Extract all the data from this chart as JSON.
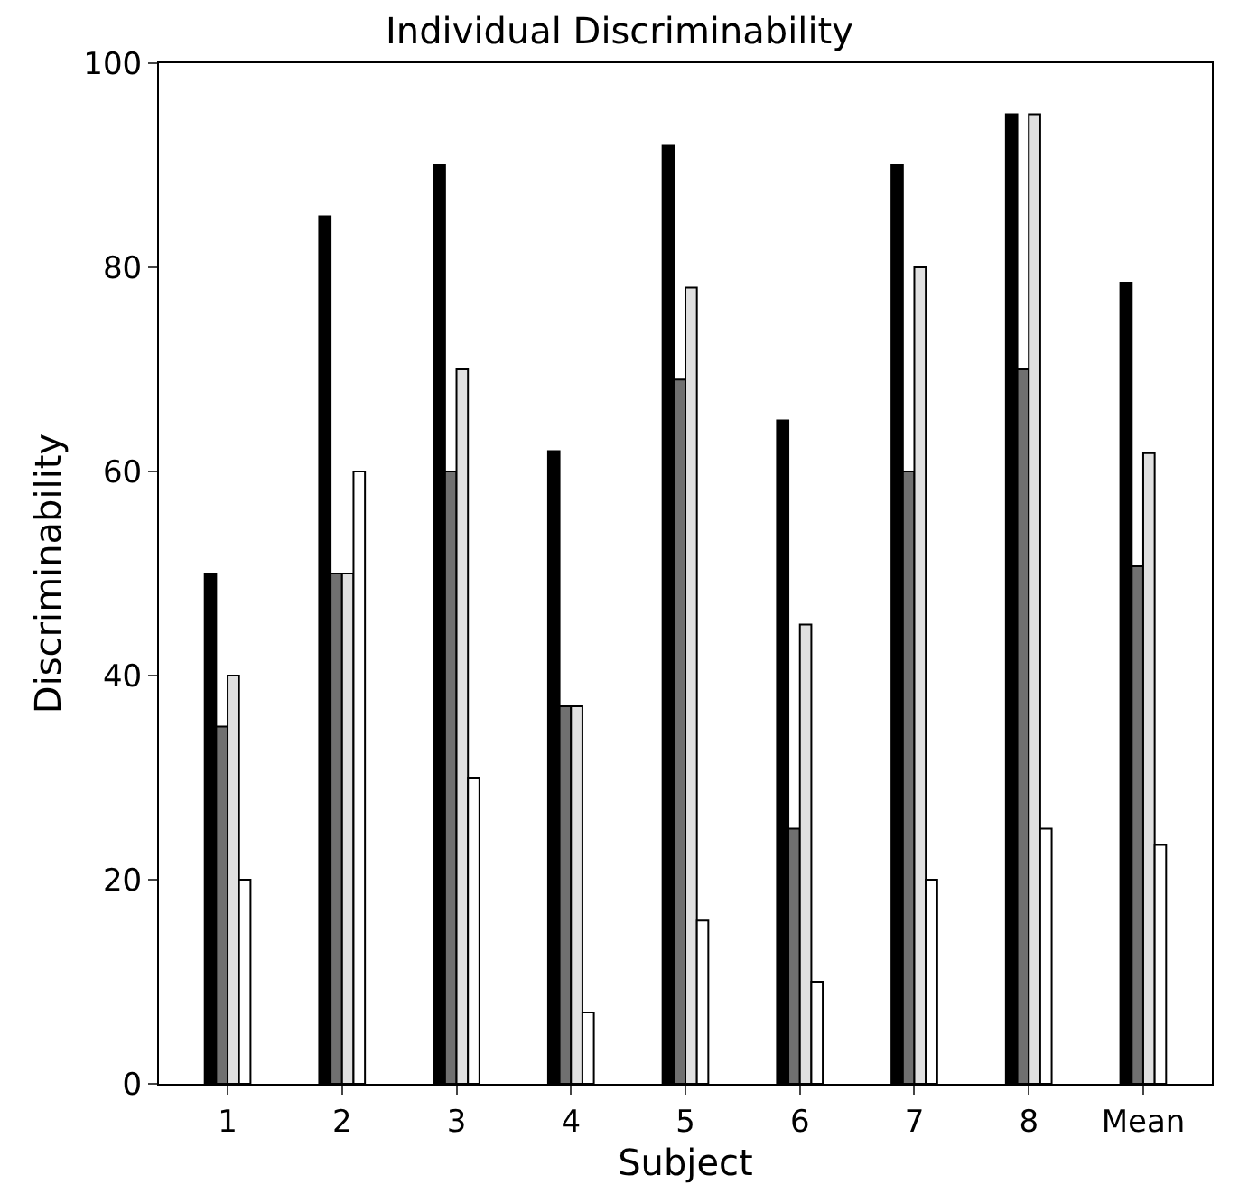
{
  "chart_data": {
    "type": "bar",
    "title": "Individual Discriminability",
    "xlabel": "Subject",
    "ylabel": "Discriminability",
    "categories": [
      "1",
      "2",
      "3",
      "4",
      "5",
      "6",
      "7",
      "8",
      "Mean"
    ],
    "series": [
      {
        "color": "#000000",
        "values": [
          50,
          85,
          90,
          62,
          92,
          65,
          90,
          95,
          78.5
        ]
      },
      {
        "color": "#707070",
        "values": [
          35,
          50,
          60,
          37,
          69,
          25,
          60,
          70,
          50.7
        ]
      },
      {
        "color": "#e0e0e0",
        "values": [
          40,
          50,
          70,
          37,
          78,
          45,
          80,
          95,
          61.8
        ]
      },
      {
        "color": "#ffffff",
        "values": [
          20,
          60,
          30,
          7,
          16,
          10,
          20,
          25,
          23.4
        ]
      }
    ],
    "ylim": [
      0,
      100
    ],
    "yticks": [
      0,
      20,
      40,
      60,
      80,
      100
    ],
    "legend": false
  }
}
